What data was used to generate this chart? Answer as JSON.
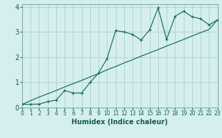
{
  "title": "",
  "xlabel": "Humidex (Indice chaleur)",
  "ylabel": "",
  "bg_color": "#d4efee",
  "grid_color": "#b0cecc",
  "line_color": "#1a6e62",
  "x_data": [
    0,
    1,
    2,
    3,
    4,
    5,
    6,
    7,
    8,
    9,
    10,
    11,
    12,
    13,
    14,
    15,
    16,
    17,
    18,
    19,
    20,
    21,
    22,
    23
  ],
  "y_zigzag": [
    0.13,
    0.13,
    0.14,
    0.24,
    0.3,
    0.68,
    0.58,
    0.58,
    1.0,
    1.38,
    1.95,
    3.05,
    3.0,
    2.9,
    2.68,
    3.08,
    3.95,
    2.7,
    3.62,
    3.82,
    3.6,
    3.52,
    3.28,
    3.48
  ],
  "y_linear": [
    0.13,
    0.28,
    0.42,
    0.55,
    0.68,
    0.82,
    0.95,
    1.08,
    1.22,
    1.35,
    1.5,
    1.63,
    1.77,
    1.9,
    2.04,
    2.17,
    2.3,
    2.44,
    2.57,
    2.7,
    2.84,
    2.97,
    3.1,
    3.48
  ],
  "xlim": [
    0,
    23
  ],
  "ylim": [
    0,
    4.1
  ],
  "yticks": [
    0,
    1,
    2,
    3,
    4
  ],
  "xticks": [
    0,
    1,
    2,
    3,
    4,
    5,
    6,
    7,
    8,
    9,
    10,
    11,
    12,
    13,
    14,
    15,
    16,
    17,
    18,
    19,
    20,
    21,
    22,
    23
  ],
  "xlabel_color": "#1a5a50",
  "tick_color": "#1a5a50"
}
